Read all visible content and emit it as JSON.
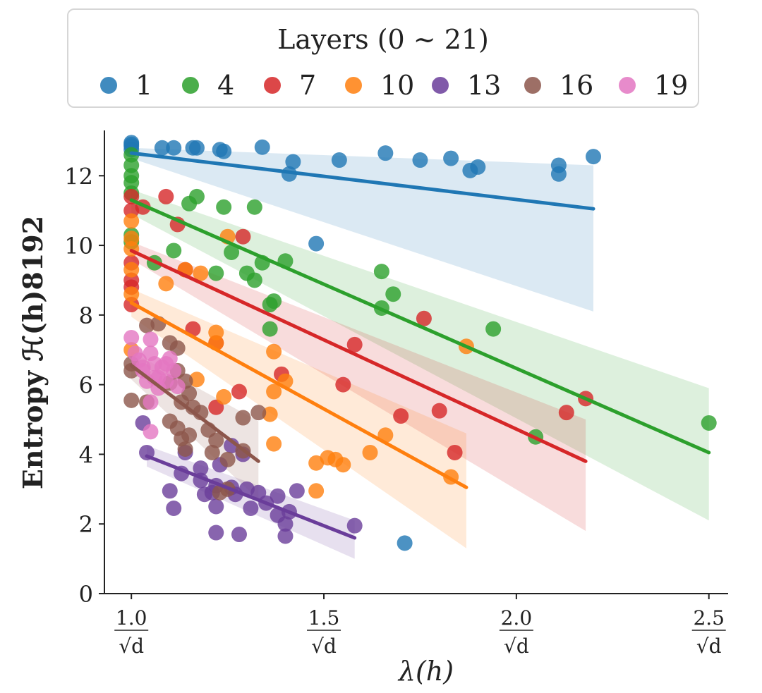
{
  "chart_data": {
    "type": "scatter",
    "xlabel": "λ(h)",
    "ylabel": "Entropy ℋ(h)8192",
    "xlim": [
      0.93,
      2.55
    ],
    "ylim": [
      0,
      13.2
    ],
    "x_ticks": [
      {
        "value": 1.0,
        "label": "1.0/√d"
      },
      {
        "value": 1.5,
        "label": "1.5/√d"
      },
      {
        "value": 2.0,
        "label": "2.0/√d"
      },
      {
        "value": 2.5,
        "label": "2.5/√d"
      }
    ],
    "y_ticks": [
      0,
      2,
      4,
      6,
      8,
      10,
      12
    ],
    "grid": false,
    "legend": {
      "title": "Layers (0 ∼ 21)",
      "placement": "top-outside",
      "entries": [
        "1",
        "4",
        "7",
        "10",
        "13",
        "16",
        "19"
      ]
    },
    "series": [
      {
        "name": "1",
        "color": "#1f77b4",
        "fit": {
          "x0": 1.0,
          "y0": 12.65,
          "x1": 2.2,
          "y1": 11.05
        },
        "band_upper": [
          12.8,
          12.3
        ],
        "band_lower": [
          12.5,
          8.1
        ],
        "points": [
          [
            1.0,
            12.95
          ],
          [
            1.0,
            12.85
          ],
          [
            1.0,
            12.75
          ],
          [
            1.0,
            12.9
          ],
          [
            1.08,
            12.8
          ],
          [
            1.11,
            12.8
          ],
          [
            1.17,
            12.8
          ],
          [
            1.16,
            12.8
          ],
          [
            1.23,
            12.75
          ],
          [
            1.24,
            12.7
          ],
          [
            1.34,
            12.82
          ],
          [
            1.42,
            12.4
          ],
          [
            1.41,
            12.05
          ],
          [
            1.54,
            12.45
          ],
          [
            1.66,
            12.65
          ],
          [
            1.75,
            12.45
          ],
          [
            1.83,
            12.5
          ],
          [
            1.88,
            12.15
          ],
          [
            1.9,
            12.25
          ],
          [
            2.11,
            12.3
          ],
          [
            2.11,
            12.05
          ],
          [
            2.2,
            12.55
          ],
          [
            1.48,
            10.05
          ],
          [
            1.71,
            1.45
          ]
        ]
      },
      {
        "name": "4",
        "color": "#2ca02c",
        "fit": {
          "x0": 1.0,
          "y0": 11.3,
          "x1": 2.5,
          "y1": 4.05
        },
        "band_upper": [
          11.6,
          5.9
        ],
        "band_lower": [
          10.9,
          2.1
        ],
        "points": [
          [
            1.0,
            12.6
          ],
          [
            1.0,
            12.3
          ],
          [
            1.0,
            12.0
          ],
          [
            1.0,
            11.8
          ],
          [
            1.0,
            11.5
          ],
          [
            1.0,
            10.3
          ],
          [
            1.0,
            10.1
          ],
          [
            1.17,
            11.4
          ],
          [
            1.15,
            11.2
          ],
          [
            1.24,
            11.1
          ],
          [
            1.32,
            11.1
          ],
          [
            1.11,
            9.85
          ],
          [
            1.06,
            9.5
          ],
          [
            1.22,
            9.2
          ],
          [
            1.26,
            9.8
          ],
          [
            1.3,
            9.2
          ],
          [
            1.32,
            9.0
          ],
          [
            1.34,
            9.5
          ],
          [
            1.4,
            9.55
          ],
          [
            1.37,
            8.4
          ],
          [
            1.36,
            8.3
          ],
          [
            1.36,
            7.6
          ],
          [
            1.65,
            9.25
          ],
          [
            1.68,
            8.6
          ],
          [
            1.65,
            8.2
          ],
          [
            1.94,
            7.6
          ],
          [
            2.05,
            4.5
          ],
          [
            2.5,
            4.9
          ]
        ]
      },
      {
        "name": "7",
        "color": "#d62728",
        "fit": {
          "x0": 1.0,
          "y0": 9.85,
          "x1": 2.18,
          "y1": 3.8
        },
        "band_upper": [
          10.1,
          5.0
        ],
        "band_lower": [
          9.6,
          1.8
        ],
        "points": [
          [
            1.0,
            11.4
          ],
          [
            1.0,
            11.0
          ],
          [
            1.0,
            9.5
          ],
          [
            1.0,
            9.0
          ],
          [
            1.0,
            8.8
          ],
          [
            1.0,
            8.3
          ],
          [
            1.09,
            11.4
          ],
          [
            1.12,
            10.6
          ],
          [
            1.03,
            11.1
          ],
          [
            1.29,
            10.25
          ],
          [
            1.14,
            9.3
          ],
          [
            1.16,
            7.6
          ],
          [
            1.22,
            7.2
          ],
          [
            1.39,
            6.3
          ],
          [
            1.28,
            5.8
          ],
          [
            1.22,
            5.35
          ],
          [
            1.55,
            6.0
          ],
          [
            1.76,
            7.9
          ],
          [
            1.58,
            7.15
          ],
          [
            1.7,
            5.1
          ],
          [
            1.8,
            5.25
          ],
          [
            1.84,
            4.05
          ],
          [
            2.13,
            5.2
          ],
          [
            2.18,
            5.6
          ]
        ]
      },
      {
        "name": "10",
        "color": "#ff7f0e",
        "fit": {
          "x0": 1.0,
          "y0": 8.35,
          "x1": 1.87,
          "y1": 3.05
        },
        "band_upper": [
          8.75,
          4.6
        ],
        "band_lower": [
          7.95,
          1.3
        ],
        "points": [
          [
            1.0,
            10.7
          ],
          [
            1.0,
            10.2
          ],
          [
            1.0,
            9.9
          ],
          [
            1.0,
            9.3
          ],
          [
            1.0,
            8.6
          ],
          [
            1.0,
            7.0
          ],
          [
            1.25,
            10.25
          ],
          [
            1.09,
            8.9
          ],
          [
            1.14,
            9.3
          ],
          [
            1.18,
            9.2
          ],
          [
            1.22,
            7.5
          ],
          [
            1.22,
            7.2
          ],
          [
            1.37,
            6.95
          ],
          [
            1.4,
            6.1
          ],
          [
            1.37,
            5.8
          ],
          [
            1.17,
            6.15
          ],
          [
            1.24,
            5.65
          ],
          [
            1.36,
            5.15
          ],
          [
            1.37,
            4.3
          ],
          [
            1.48,
            3.75
          ],
          [
            1.51,
            3.9
          ],
          [
            1.55,
            3.7
          ],
          [
            1.53,
            3.85
          ],
          [
            1.48,
            2.95
          ],
          [
            1.62,
            4.05
          ],
          [
            1.66,
            4.55
          ],
          [
            1.87,
            7.1
          ],
          [
            1.83,
            3.35
          ]
        ]
      },
      {
        "name": "13",
        "color": "#6a3d9a",
        "fit": {
          "x0": 1.04,
          "y0": 3.95,
          "x1": 1.58,
          "y1": 1.6
        },
        "band_upper": [
          4.25,
          2.1
        ],
        "band_lower": [
          3.65,
          1.0
        ],
        "points": [
          [
            1.04,
            4.05
          ],
          [
            1.03,
            4.9
          ],
          [
            1.1,
            2.95
          ],
          [
            1.11,
            2.45
          ],
          [
            1.13,
            3.45
          ],
          [
            1.14,
            4.05
          ],
          [
            1.18,
            3.6
          ],
          [
            1.18,
            3.25
          ],
          [
            1.19,
            2.85
          ],
          [
            1.21,
            2.9
          ],
          [
            1.22,
            3.1
          ],
          [
            1.23,
            3.7
          ],
          [
            1.22,
            2.5
          ],
          [
            1.22,
            1.75
          ],
          [
            1.26,
            3.05
          ],
          [
            1.27,
            2.85
          ],
          [
            1.28,
            1.7
          ],
          [
            1.3,
            3.0
          ],
          [
            1.31,
            2.45
          ],
          [
            1.33,
            2.9
          ],
          [
            1.35,
            2.6
          ],
          [
            1.38,
            2.8
          ],
          [
            1.38,
            2.25
          ],
          [
            1.4,
            2.0
          ],
          [
            1.41,
            2.35
          ],
          [
            1.4,
            1.65
          ],
          [
            1.43,
            2.95
          ],
          [
            1.58,
            1.95
          ],
          [
            1.29,
            4.0
          ],
          [
            1.26,
            4.25
          ]
        ]
      },
      {
        "name": "16",
        "color": "#8c564b",
        "fit": {
          "x0": 1.0,
          "y0": 6.55,
          "x1": 1.33,
          "y1": 3.8
        },
        "band_upper": [
          6.95,
          4.95
        ],
        "band_lower": [
          6.15,
          2.7
        ],
        "points": [
          [
            1.0,
            6.6
          ],
          [
            1.0,
            6.4
          ],
          [
            1.0,
            5.55
          ],
          [
            1.04,
            7.7
          ],
          [
            1.07,
            7.75
          ],
          [
            1.1,
            7.2
          ],
          [
            1.12,
            7.05
          ],
          [
            1.1,
            6.05
          ],
          [
            1.12,
            6.4
          ],
          [
            1.14,
            6.1
          ],
          [
            1.13,
            5.5
          ],
          [
            1.15,
            5.75
          ],
          [
            1.18,
            5.2
          ],
          [
            1.16,
            5.35
          ],
          [
            1.1,
            4.95
          ],
          [
            1.12,
            4.75
          ],
          [
            1.13,
            4.45
          ],
          [
            1.15,
            4.55
          ],
          [
            1.14,
            4.15
          ],
          [
            1.2,
            4.7
          ],
          [
            1.22,
            4.4
          ],
          [
            1.21,
            4.05
          ],
          [
            1.25,
            3.85
          ],
          [
            1.29,
            4.1
          ],
          [
            1.29,
            5.05
          ],
          [
            1.33,
            5.2
          ],
          [
            1.25,
            3.0
          ],
          [
            1.23,
            2.9
          ],
          [
            1.04,
            5.5
          ]
        ]
      },
      {
        "name": "19",
        "color": "#e377c2",
        "fit": null,
        "band_upper": null,
        "band_lower": null,
        "points": [
          [
            1.0,
            7.35
          ],
          [
            1.01,
            6.9
          ],
          [
            1.02,
            6.7
          ],
          [
            1.03,
            6.4
          ],
          [
            1.04,
            6.1
          ],
          [
            1.05,
            6.9
          ],
          [
            1.06,
            6.6
          ],
          [
            1.07,
            6.2
          ],
          [
            1.08,
            6.5
          ],
          [
            1.09,
            6.1
          ],
          [
            1.1,
            6.75
          ],
          [
            1.11,
            6.4
          ],
          [
            1.05,
            7.3
          ],
          [
            1.05,
            5.5
          ],
          [
            1.05,
            4.65
          ],
          [
            1.07,
            5.9
          ],
          [
            1.09,
            6.6
          ],
          [
            1.12,
            5.95
          ],
          [
            1.03,
            6.5
          ],
          [
            1.06,
            6.2
          ]
        ]
      }
    ]
  }
}
